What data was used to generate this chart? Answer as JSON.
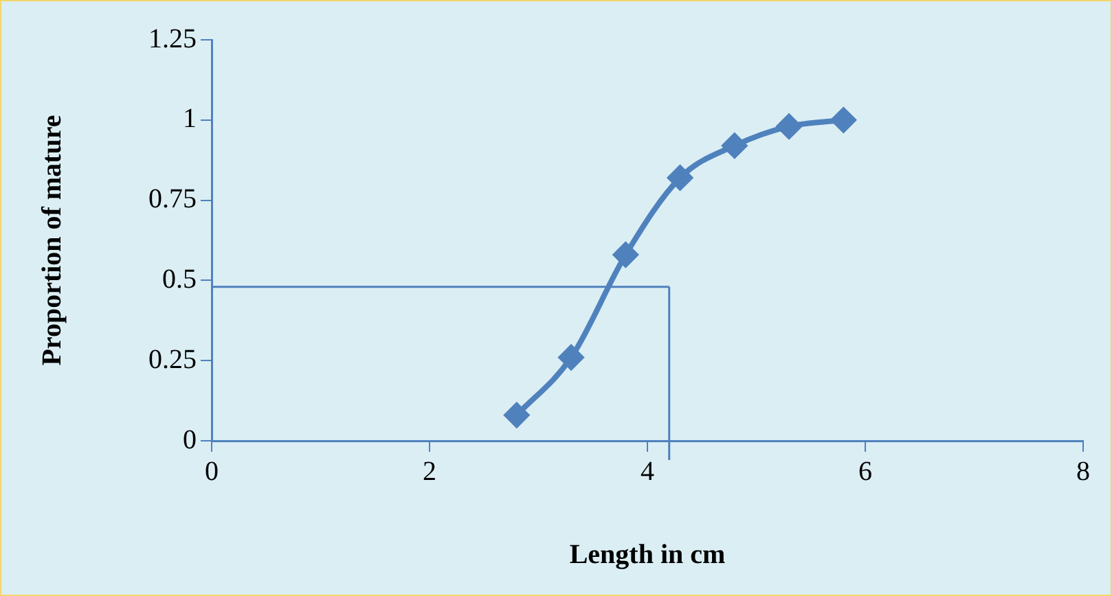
{
  "chart_data": {
    "type": "line",
    "xlabel": "Length in cm",
    "ylabel": "Proportion of mature",
    "x": [
      2.8,
      3.3,
      3.8,
      4.3,
      4.8,
      5.3,
      5.8
    ],
    "series": [
      {
        "color": "#4f81bd",
        "values": [
          0.08,
          0.26,
          0.58,
          0.82,
          0.92,
          0.98,
          1.0
        ]
      }
    ],
    "xlim": [
      0,
      8
    ],
    "xticks": [
      0,
      2,
      4,
      6,
      8
    ],
    "ylim": [
      0,
      1.25
    ],
    "yticks": [
      0,
      0.25,
      0.5,
      0.75,
      1,
      1.25
    ],
    "ref_lines": [
      {
        "axis": "y",
        "value": 0.48,
        "color": "#4f81bd"
      },
      {
        "axis": "x",
        "value": 4.2,
        "color": "#4f81bd"
      }
    ],
    "marker": "diamond",
    "line_style": "solid",
    "grid": false,
    "legend": false
  }
}
